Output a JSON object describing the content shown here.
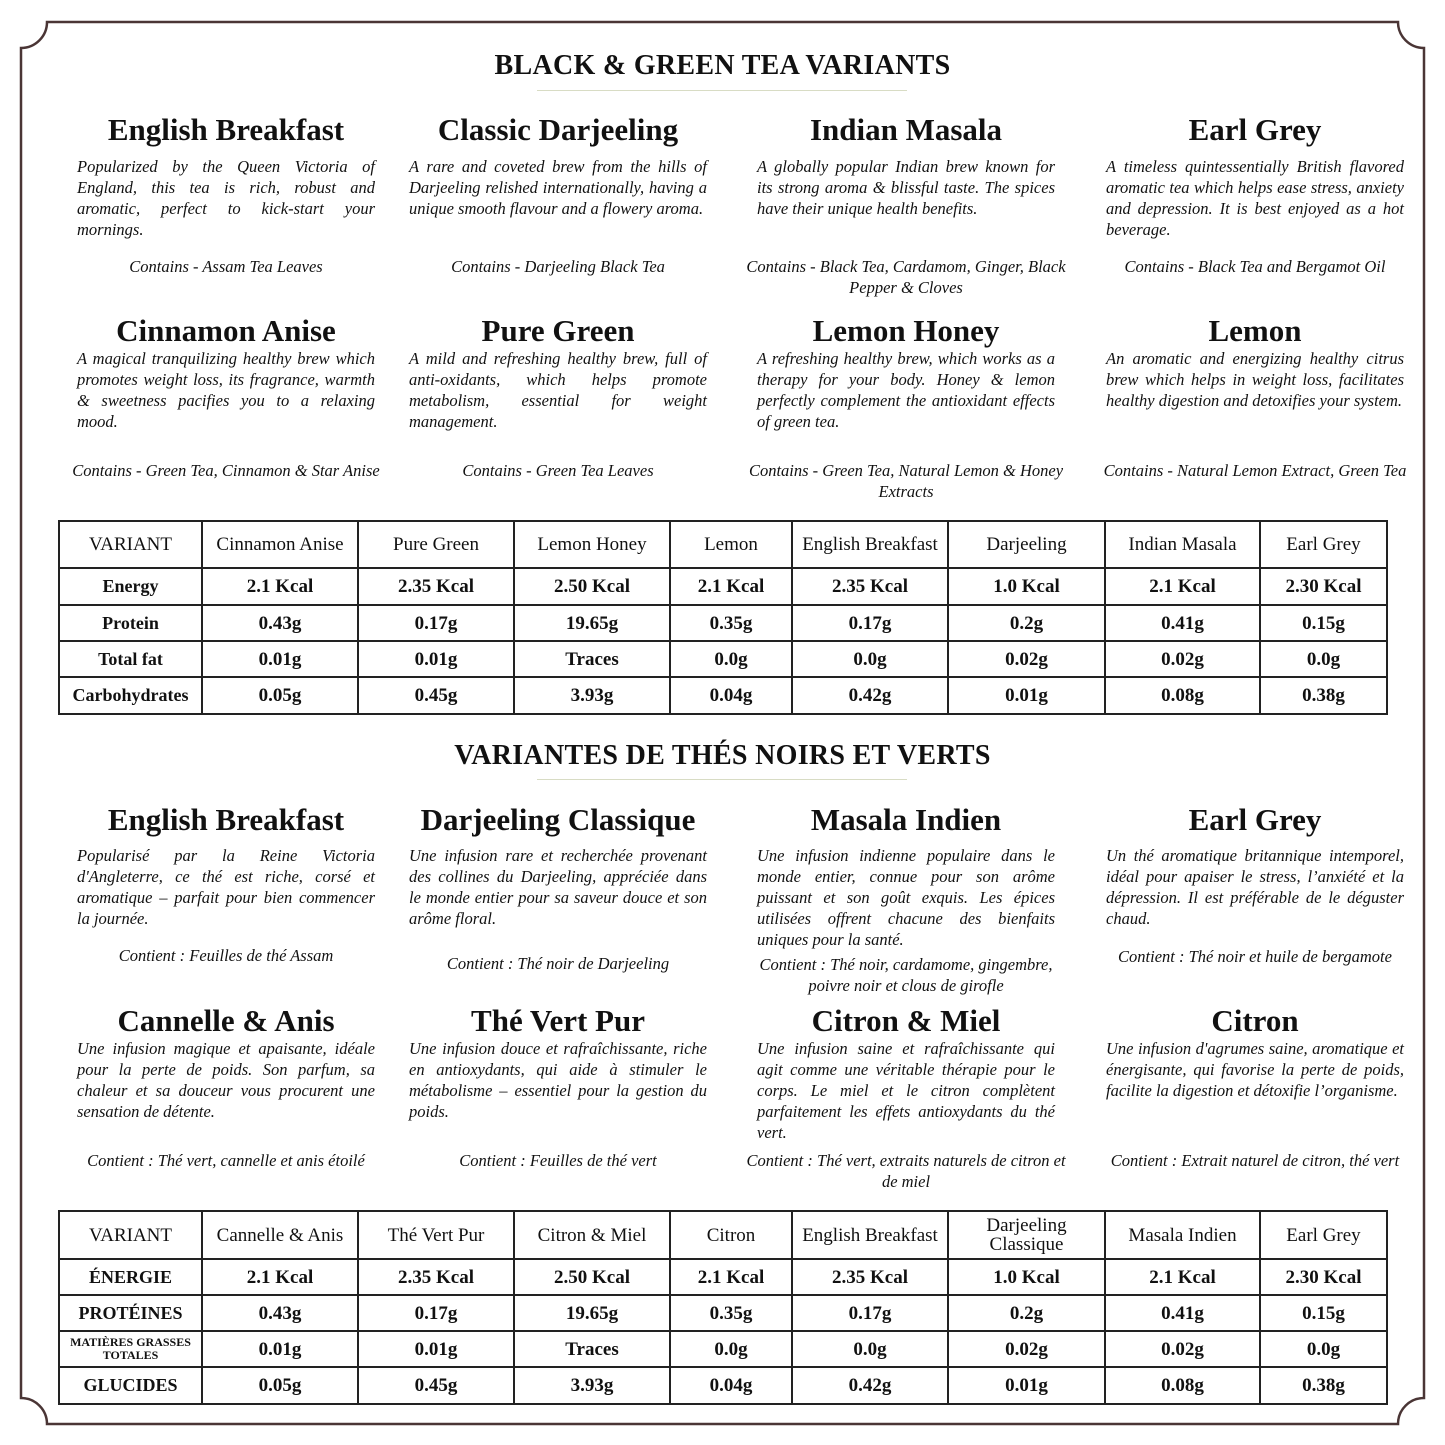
{
  "colors": {
    "frame": "#4a3535",
    "rule": "#d8dcc4",
    "text": "#111111"
  },
  "english": {
    "heading": "BLACK & GREEN TEA VARIANTS",
    "cards": [
      {
        "title": "English Breakfast",
        "desc": "Popularized by the Queen Victoria of England, this tea is rich, robust and aromatic, perfect to kick-start your mornings.",
        "contains": "Contains - Assam Tea Leaves"
      },
      {
        "title": "Classic Darjeeling",
        "desc": "A rare and coveted brew from the hills of Darjeeling relished internationally, having a unique smooth flavour and a flowery aroma.",
        "contains": "Contains - Darjeeling Black Tea"
      },
      {
        "title": "Indian Masala",
        "desc": "A globally popular Indian brew known for its strong aroma & blissful taste. The spices have their unique health benefits.",
        "contains": "Contains - Black Tea, Cardamom, Ginger, Black Pepper & Cloves"
      },
      {
        "title": "Earl Grey",
        "desc": "A timeless quintessentially British flavored aromatic tea which helps ease stress, anxiety and depression. It is best enjoyed as a hot beverage.",
        "contains": "Contains - Black Tea and Bergamot Oil"
      },
      {
        "title": "Cinnamon Anise",
        "desc": "A magical tranquilizing healthy brew which promotes weight loss, its fragrance, warmth & sweetness pacifies you to a relaxing mood.",
        "contains": "Contains - Green Tea, Cinnamon & Star Anise"
      },
      {
        "title": "Pure Green",
        "desc": "A mild and refreshing healthy brew, full of anti-oxidants, which helps promote metabolism, essential for weight management.",
        "contains": "Contains - Green Tea Leaves"
      },
      {
        "title": "Lemon Honey",
        "desc": "A refreshing healthy brew, which works as a therapy for your body. Honey & lemon perfectly complement the antioxidant effects of green tea.",
        "contains": "Contains - Green Tea, Natural Lemon & Honey Extracts"
      },
      {
        "title": "Lemon",
        "desc": "An aromatic and energizing healthy citrus brew which helps in weight loss, facilitates healthy digestion and detoxifies your system.",
        "contains": "Contains - Natural Lemon Extract, Green Tea"
      }
    ],
    "table": {
      "header": [
        "VARIANT",
        "Cinnamon Anise",
        "Pure Green",
        "Lemon Honey",
        "Lemon",
        "English Breakfast",
        "Darjeeling",
        "Indian Masala",
        "Earl Grey"
      ],
      "rows": [
        [
          "Energy",
          "2.1 Kcal",
          "2.35 Kcal",
          "2.50 Kcal",
          "2.1 Kcal",
          "2.35 Kcal",
          "1.0 Kcal",
          "2.1 Kcal",
          "2.30 Kcal"
        ],
        [
          "Protein",
          "0.43g",
          "0.17g",
          "19.65g",
          "0.35g",
          "0.17g",
          "0.2g",
          "0.41g",
          "0.15g"
        ],
        [
          "Total fat",
          "0.01g",
          "0.01g",
          "Traces",
          "0.0g",
          "0.0g",
          "0.02g",
          "0.02g",
          "0.0g"
        ],
        [
          "Carbohydrates",
          "0.05g",
          "0.45g",
          "3.93g",
          "0.04g",
          "0.42g",
          "0.01g",
          "0.08g",
          "0.38g"
        ]
      ]
    }
  },
  "french": {
    "heading": "VARIANTES DE THÉS NOIRS ET VERTS",
    "cards": [
      {
        "title": "English Breakfast",
        "desc": "Popularisé par la Reine Victoria d'Angleterre, ce thé est riche, corsé et aromatique – parfait pour bien commencer la journée.",
        "contains": "Contient : Feuilles de thé Assam"
      },
      {
        "title": "Darjeeling Classique",
        "desc": "Une infusion rare et recherchée provenant des collines du Darjeeling, appréciée dans le monde entier pour sa saveur douce et son arôme floral.",
        "contains": "Contient : Thé noir de Darjeeling"
      },
      {
        "title": "Masala Indien",
        "desc": "Une infusion indienne populaire dans le monde entier, connue pour son arôme puissant et son goût exquis. Les épices utilisées offrent chacune des bienfaits uniques pour la santé.",
        "contains": "Contient : Thé noir, cardamome, gingembre, poivre noir et clous de girofle"
      },
      {
        "title": "Earl Grey",
        "desc": "Un thé aromatique britannique intemporel, idéal pour apaiser le stress, l’anxiété et la dépression. Il est préférable de le déguster chaud.",
        "contains": "Contient : Thé noir et huile de bergamote"
      },
      {
        "title": "Cannelle & Anis",
        "desc": "Une infusion magique et apaisante, idéale pour la perte de poids. Son parfum, sa chaleur et sa douceur vous procurent une sensation de détente.",
        "contains": "Contient : Thé vert, cannelle et anis étoilé"
      },
      {
        "title": "Thé Vert Pur",
        "desc": "Une infusion douce et rafraîchissante, riche en antioxydants, qui aide à stimuler le métabolisme – essentiel pour la gestion du poids.",
        "contains": "Contient : Feuilles de thé vert"
      },
      {
        "title": "Citron & Miel",
        "desc": "Une infusion saine et rafraîchissante qui agit comme une véritable thérapie pour le corps. Le miel et le citron complètent parfaitement les effets antioxydants du thé vert.",
        "contains": "Contient : Thé vert, extraits naturels de citron et de miel"
      },
      {
        "title": "Citron",
        "desc": "Une infusion d'agrumes saine, aromatique et énergisante, qui favorise la perte de poids, facilite la digestion et détoxifie l’organisme.",
        "contains": "Contient : Extrait naturel de citron, thé vert"
      }
    ],
    "table": {
      "header": [
        "VARIANT",
        "Cannelle & Anis",
        "Thé Vert Pur",
        "Citron & Miel",
        "Citron",
        "English Breakfast",
        "Darjeeling Classique",
        "Masala Indien",
        "Earl Grey"
      ],
      "rows": [
        [
          "ÉNERGIE",
          "2.1 Kcal",
          "2.35 Kcal",
          "2.50 Kcal",
          "2.1 Kcal",
          "2.35 Kcal",
          "1.0 Kcal",
          "2.1 Kcal",
          "2.30 Kcal"
        ],
        [
          "PROTÉINES",
          "0.43g",
          "0.17g",
          "19.65g",
          "0.35g",
          "0.17g",
          "0.2g",
          "0.41g",
          "0.15g"
        ],
        [
          "MATIÈRES GRASSES TOTALES",
          "0.01g",
          "0.01g",
          "Traces",
          "0.0g",
          "0.0g",
          "0.02g",
          "0.02g",
          "0.0g"
        ],
        [
          "GLUCIDES",
          "0.05g",
          "0.45g",
          "3.93g",
          "0.04g",
          "0.42g",
          "0.01g",
          "0.08g",
          "0.38g"
        ]
      ]
    }
  }
}
